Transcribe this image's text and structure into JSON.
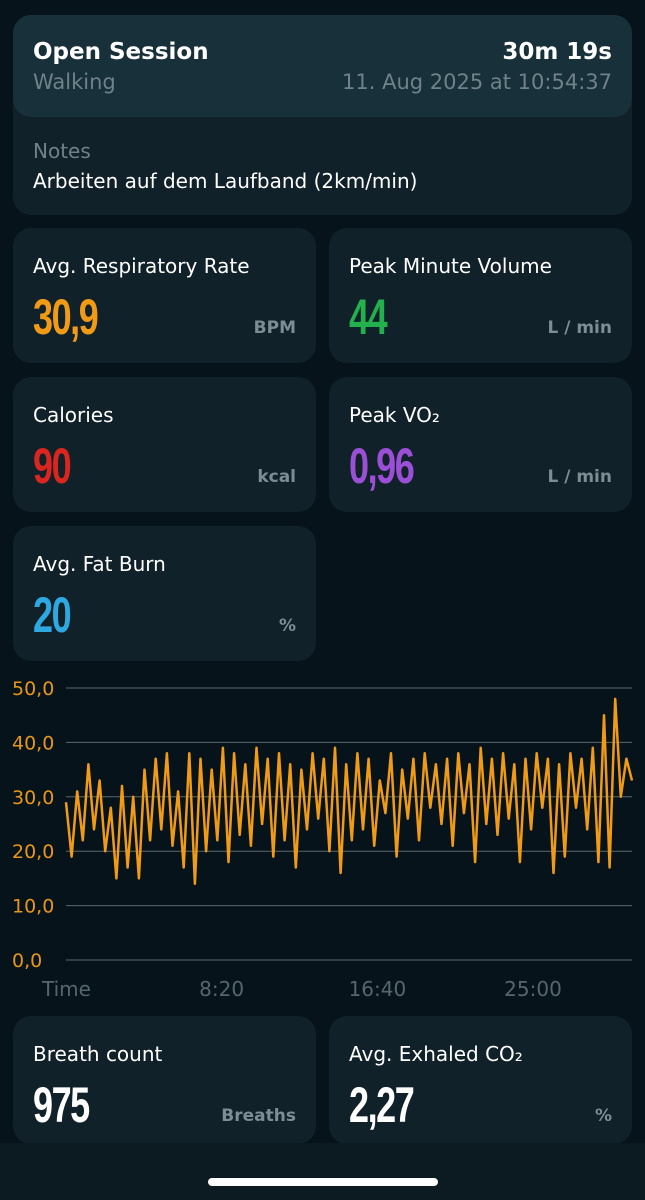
{
  "session": {
    "title": "Open Session",
    "duration": "30m 19s",
    "activity": "Walking",
    "datetime": "11. Aug 2025 at 10:54:37",
    "notes_label": "Notes",
    "notes_text": "Arbeiten auf dem Laufband (2km/min)"
  },
  "stats": {
    "resp_rate": {
      "label": "Avg. Respiratory Rate",
      "value": "30,9",
      "unit": "BPM",
      "color": "#f19a16"
    },
    "minute_volume": {
      "label": "Peak Minute Volume",
      "value": "44",
      "unit": "L / min",
      "color": "#22b14c"
    },
    "calories": {
      "label": "Calories",
      "value": "90",
      "unit": "kcal",
      "color": "#d9261f"
    },
    "vo2": {
      "label": "Peak VO₂",
      "value": "0,96",
      "unit": "L / min",
      "color": "#9b4fd6"
    },
    "fat_burn": {
      "label": "Avg. Fat Burn",
      "value": "20",
      "unit": "%",
      "color": "#2ea8e0"
    },
    "breath_count": {
      "label": "Breath count",
      "value": "975",
      "unit": "Breaths",
      "color": "#ffffff"
    },
    "exhaled_co2": {
      "label": "Avg. Exhaled CO₂",
      "value": "2,27",
      "unit": "%",
      "color": "#ffffff"
    }
  },
  "chart_data": {
    "type": "line",
    "x_unit": "minutes",
    "xlim": [
      0,
      30.3
    ],
    "ylim": [
      0,
      50
    ],
    "y_ticks": [
      "0,0",
      "10,0",
      "20,0",
      "30,0",
      "40,0",
      "50,0"
    ],
    "x_ticks": [
      {
        "label": "Time",
        "value": 0
      },
      {
        "label": "8:20",
        "value": 8.33
      },
      {
        "label": "16:40",
        "value": 16.67
      },
      {
        "label": "25:00",
        "value": 25.0
      }
    ],
    "grid": true,
    "line_color": "#f19a16",
    "series": [
      {
        "x": [
          0,
          0.3,
          0.6,
          0.9,
          1.2,
          1.5,
          1.8,
          2.1,
          2.4,
          2.7,
          3.0,
          3.3,
          3.6,
          3.9,
          4.2,
          4.5,
          4.8,
          5.1,
          5.4,
          5.7,
          6.0,
          6.3,
          6.6,
          6.9,
          7.2,
          7.5,
          7.8,
          8.1,
          8.4,
          8.7,
          9.0,
          9.3,
          9.6,
          9.9,
          10.2,
          10.5,
          10.8,
          11.1,
          11.4,
          11.7,
          12.0,
          12.3,
          12.6,
          12.9,
          13.2,
          13.5,
          13.8,
          14.1,
          14.4,
          14.7,
          15.0,
          15.3,
          15.6,
          15.9,
          16.2,
          16.5,
          16.8,
          17.1,
          17.4,
          17.7,
          18.0,
          18.3,
          18.6,
          18.9,
          19.2,
          19.5,
          19.8,
          20.1,
          20.4,
          20.7,
          21.0,
          21.3,
          21.6,
          21.9,
          22.2,
          22.5,
          22.8,
          23.1,
          23.4,
          23.7,
          24.0,
          24.3,
          24.6,
          24.9,
          25.2,
          25.5,
          25.8,
          26.1,
          26.4,
          26.7,
          27.0,
          27.3,
          27.6,
          27.9,
          28.2,
          28.5,
          28.8,
          29.1,
          29.4,
          29.7,
          30.0,
          30.3
        ],
        "y": [
          29,
          19,
          31,
          22,
          36,
          24,
          33,
          20,
          28,
          15,
          32,
          17,
          30,
          15,
          35,
          22,
          37,
          24,
          38,
          21,
          31,
          17,
          38,
          14,
          37,
          20,
          35,
          22,
          39,
          18,
          38,
          23,
          36,
          21,
          39,
          25,
          37,
          19,
          38,
          22,
          36,
          17,
          35,
          24,
          38,
          26,
          37,
          20,
          39,
          16,
          36,
          22,
          38,
          24,
          37,
          21,
          33,
          27,
          38,
          19,
          35,
          26,
          37,
          22,
          38,
          28,
          36,
          25,
          37,
          21,
          38,
          27,
          36,
          18,
          39,
          25,
          37,
          23,
          38,
          26,
          36,
          18,
          37,
          24,
          38,
          28,
          37,
          16,
          36,
          19,
          38,
          28,
          37,
          24,
          39,
          18,
          45,
          17,
          48,
          30,
          37,
          33
        ]
      }
    ]
  }
}
